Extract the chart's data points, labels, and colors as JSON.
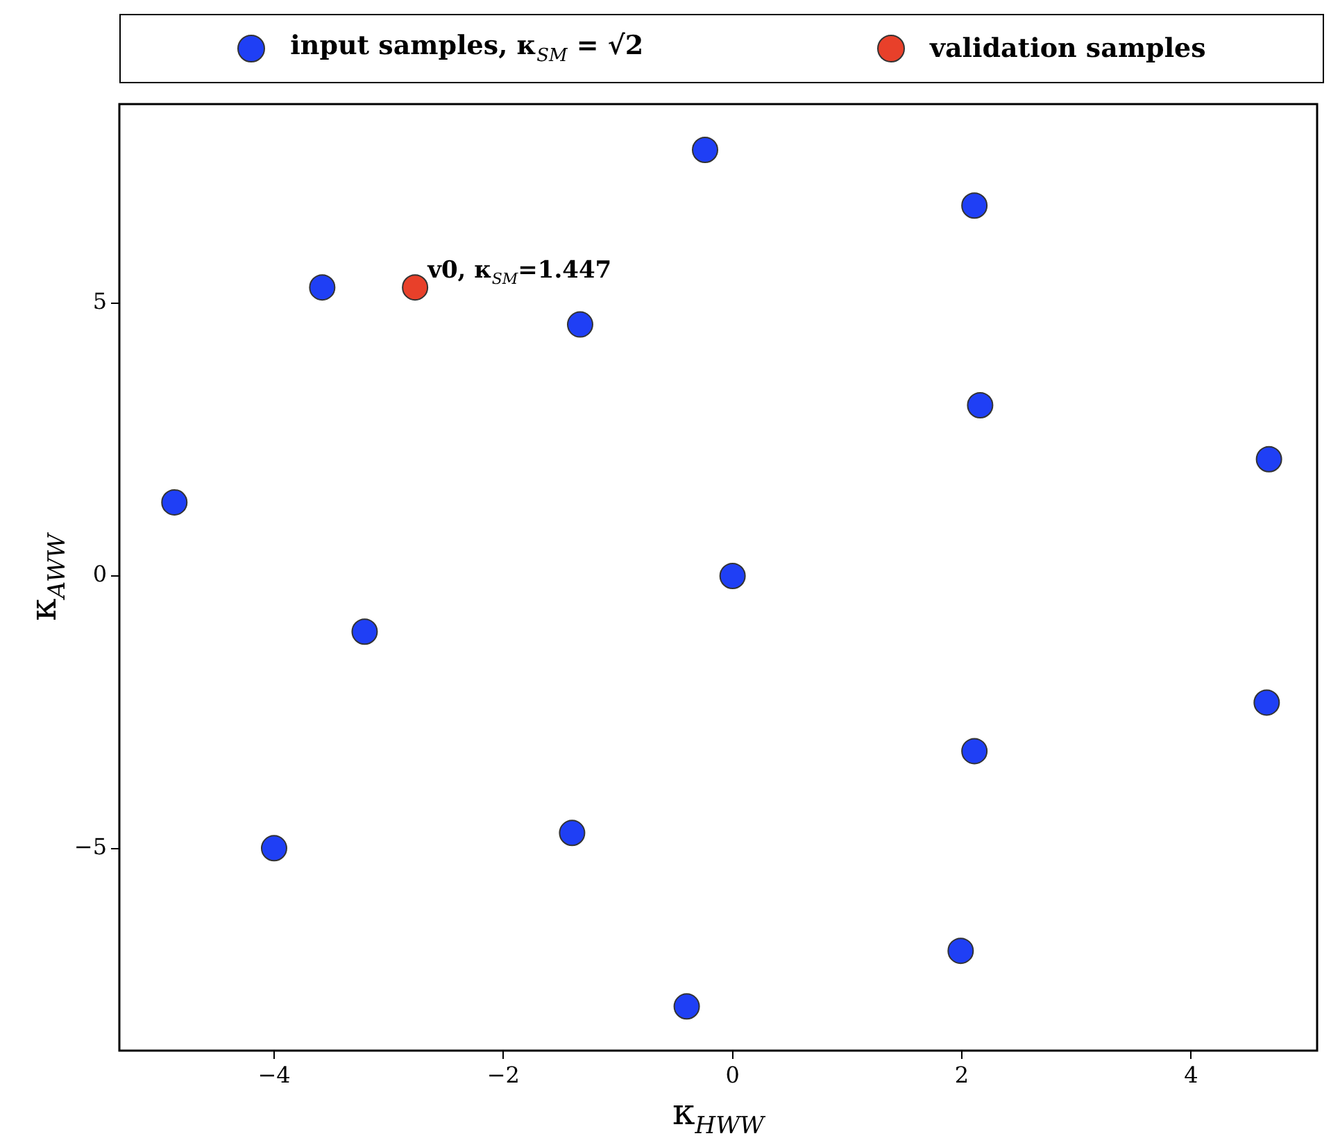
{
  "chart_data": {
    "type": "scatter",
    "xlabel": "κ$_{HWW}$",
    "ylabel": "κ$_{AWW}$",
    "xlim": [
      -5.35,
      5.1
    ],
    "ylim": [
      -8.7,
      8.65
    ],
    "xticks": [
      -4,
      -2,
      0,
      2,
      4
    ],
    "yticks": [
      -5,
      0,
      5
    ],
    "grid": false,
    "legend": "top",
    "marker": "circle",
    "series": [
      {
        "name": "input samples, κ$_{SM}$ = √2",
        "color": "#1f3ff5",
        "x": [
          -0.24,
          2.11,
          -3.58,
          -1.33,
          2.16,
          4.68,
          -4.87,
          0,
          -3.21,
          4.66,
          2.11,
          -1.4,
          -4.0,
          1.99,
          -0.4
        ],
        "values": [
          7.81,
          6.79,
          5.29,
          4.61,
          3.13,
          2.14,
          1.35,
          0,
          -1.02,
          -2.32,
          -3.21,
          -4.71,
          -4.99,
          -6.87,
          -7.89
        ]
      },
      {
        "name": "validation samples",
        "color": "#e8402a",
        "x": [
          -2.77
        ],
        "values": [
          5.29
        ]
      }
    ],
    "annotations": [
      {
        "text": "v0, κ$_{SM}$=1.447",
        "x": -2.77,
        "y": 5.29
      }
    ]
  }
}
